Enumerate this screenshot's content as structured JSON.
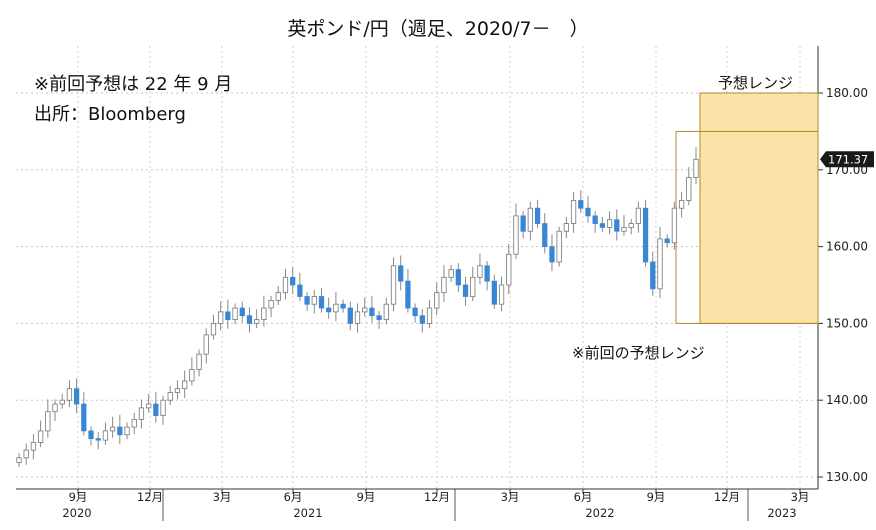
{
  "chart_data": {
    "type": "candlestick",
    "title": "英ポンド/円（週足、2020/7－　）",
    "notes": [
      "※前回予想は 22 年 9 月",
      "出所：Bloomberg"
    ],
    "last_value": "171.37",
    "y_ticks": [
      "130.00",
      "140.00",
      "150.00",
      "160.00",
      "170.00",
      "180.00"
    ],
    "ylim": [
      129,
      184
    ],
    "x_month_labels": [
      "9月",
      "12月",
      "3月",
      "6月",
      "9月",
      "12月",
      "3月",
      "6月",
      "9月",
      "12月",
      "3月"
    ],
    "x_year_labels": [
      "2020",
      "2021",
      "2022",
      "2023"
    ],
    "forecast_range": {
      "label": "予想レンジ",
      "low": 150,
      "high": 180
    },
    "previous_forecast_range": {
      "label": "※前回の予想レンジ",
      "low": 150,
      "high": 175
    },
    "grid": true,
    "colors": {
      "up": "#ffffff",
      "down": "#3a86d6",
      "wick": "#888888",
      "range_fill": "#fbe2a6",
      "range_stroke": "#b08a2a",
      "prev_stroke": "#b08a2a"
    },
    "close_path": [
      132.5,
      133.5,
      134.5,
      136,
      138.5,
      139.5,
      140,
      141.5,
      139.5,
      136,
      135,
      134.8,
      136,
      136.5,
      135.5,
      136.5,
      137.5,
      139,
      139.5,
      138,
      140,
      141,
      141.5,
      142.5,
      144,
      146,
      148.5,
      150,
      151.5,
      150.5,
      152,
      151,
      150,
      150.5,
      152,
      153,
      154,
      156,
      155,
      153.5,
      152.5,
      153.5,
      152,
      151.5,
      152.5,
      152,
      150,
      151.5,
      152,
      151,
      150.5,
      152.5,
      157.5,
      155.5,
      152,
      151,
      150,
      152,
      154,
      156,
      157,
      155,
      153.5,
      156,
      157.5,
      155.5,
      152.5,
      155,
      159,
      164,
      162,
      165,
      163,
      160,
      158,
      162,
      163,
      166,
      165,
      164,
      163,
      162.5,
      163.5,
      162,
      162.5,
      163,
      165,
      158,
      154.5,
      161,
      160.5,
      165,
      166,
      169,
      171.37
    ]
  }
}
